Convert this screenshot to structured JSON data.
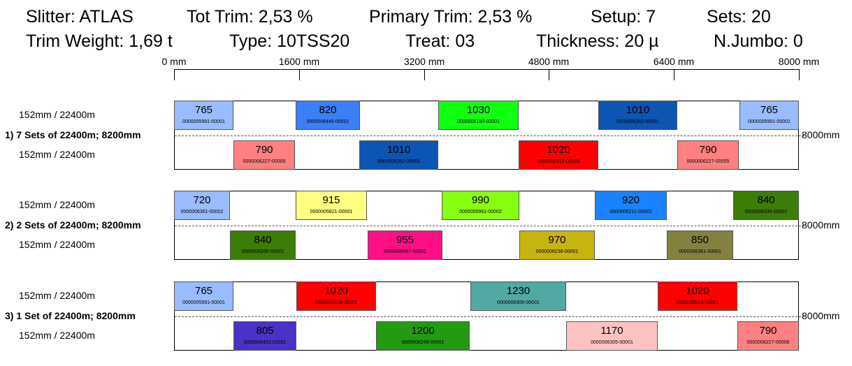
{
  "header": {
    "slitter": "Slitter: ATLAS",
    "tot_trim": "Tot Trim: 2,53 %",
    "primary_trim": "Primary Trim: 2,53 %",
    "setup": "Setup: 7",
    "sets": "Sets: 20",
    "trim_weight": "Trim Weight: 1,69 t",
    "type": "Type: 10TSS20",
    "treat": "Treat:  03",
    "thickness": "Thickness: 20 µ",
    "n_jumbo": "N.Jumbo: 0"
  },
  "axis": {
    "ticks": [
      "0 mm",
      "1600 mm",
      "3200 mm",
      "4800 mm",
      "6400 mm",
      "8000 mm"
    ]
  },
  "groups": [
    {
      "title": "1) 7 Sets of 22400m; 8200mm",
      "row_label_top": "152mm / 22400m",
      "row_label_bottom": "152mm / 22400m",
      "right_label": "8000mm",
      "top": [
        {
          "width": "765",
          "code": "0000005991-00001",
          "color": "#99bbff"
        },
        {
          "width": "820",
          "code": "0000006445-00001",
          "color": "#3b7ef5"
        },
        {
          "width": "1030",
          "code": "0000006190-00001",
          "color": "#11ff11"
        },
        {
          "width": "1010",
          "code": "0000006352-00001",
          "color": "#0d55b2"
        },
        {
          "width": "765",
          "code": "0000005991-00001",
          "color": "#99bbff"
        }
      ],
      "bottom": [
        {
          "width": "790",
          "code": "0000006227-00005",
          "color": "#ff8080"
        },
        {
          "width": "1010",
          "code": "0000006352-00001",
          "color": "#0d55b2"
        },
        {
          "width": "1020",
          "code": "0000006319-00001",
          "color": "#ff0000"
        },
        {
          "width": "790",
          "code": "0000006227-00005",
          "color": "#ff8080"
        }
      ]
    },
    {
      "title": "2) 2 Sets of 22400m; 8200mm",
      "row_label_top": "152mm / 22400m",
      "row_label_bottom": "152mm / 22400m",
      "right_label": "8000mm",
      "top": [
        {
          "width": "720",
          "code": "0000006361-00002",
          "color": "#99bbff"
        },
        {
          "width": "915",
          "code": "0000005821-00001",
          "color": "#ffff80"
        },
        {
          "width": "990",
          "code": "0000005991-00002",
          "color": "#88ff11"
        },
        {
          "width": "920",
          "code": "0000006211-00002",
          "color": "#1a82ff"
        },
        {
          "width": "840",
          "code": "0000006336-00001",
          "color": "#3c7d07"
        }
      ],
      "bottom": [
        {
          "width": "840",
          "code": "0000006336-00001",
          "color": "#3c7d07"
        },
        {
          "width": "955",
          "code": "0000006457-00001",
          "color": "#ff0f86"
        },
        {
          "width": "970",
          "code": "0000006238-00001",
          "color": "#c8b410"
        },
        {
          "width": "850",
          "code": "0000006361-00001",
          "color": "#848040"
        }
      ]
    },
    {
      "title": "3) 1 Set of 22400m; 8200mm",
      "row_label_top": "152mm / 22400m",
      "row_label_bottom": "152mm / 22400m",
      "right_label": "8000mm",
      "top": [
        {
          "width": "765",
          "code": "0000005991-00001",
          "color": "#99bbff"
        },
        {
          "width": "1020",
          "code": "0000006319-00001",
          "color": "#ff0000"
        },
        {
          "width": "1230",
          "code": "0000006306-00001",
          "color": "#52a8a2"
        },
        {
          "width": "1020",
          "code": "0000006319-00001",
          "color": "#ff0000"
        }
      ],
      "bottom": [
        {
          "width": "805",
          "code": "0000006453-00001",
          "color": "#4b32c6"
        },
        {
          "width": "1200",
          "code": "0000006249-00001",
          "color": "#229a12"
        },
        {
          "width": "1170",
          "code": "0000006305-00001",
          "color": "#ffc2c2"
        },
        {
          "width": "790",
          "code": "0000006227-00006",
          "color": "#ff8080"
        }
      ]
    }
  ]
}
